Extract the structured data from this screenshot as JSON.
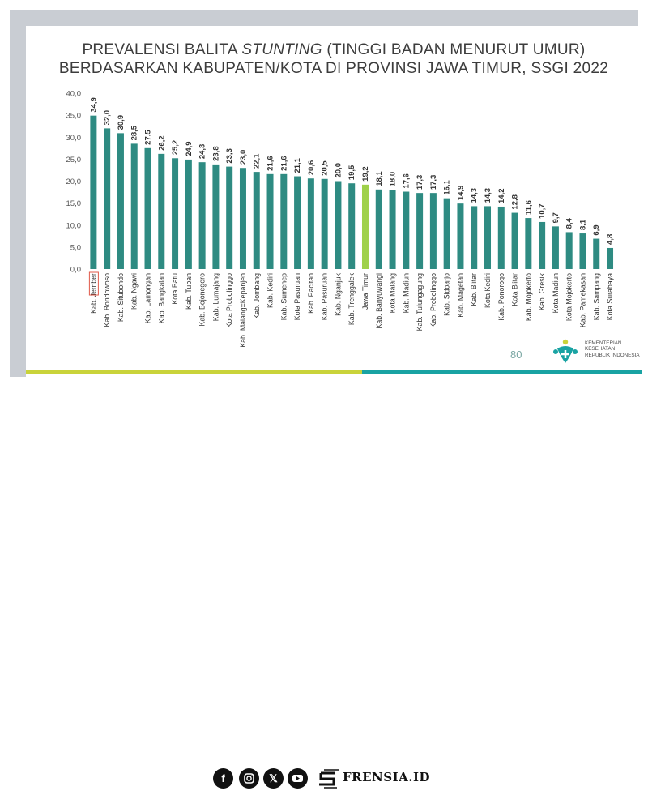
{
  "title": {
    "line1_pre": "PREVALENSI BALITA ",
    "line1_em": "STUNTING",
    "line1_post": " (TINGGI BADAN MENURUT UMUR)",
    "line2": "BERDASARKAN KABUPATEN/KOTA DI PROVINSI JAWA TIMUR, SSGI 2022"
  },
  "page_number": "80",
  "ministry_logo_text": "KEMENTERIAN KESEHATAN REPUBLIK INDONESIA",
  "colors": {
    "bar": "#2e8b82",
    "highlight_bar": "#9fd14a",
    "highlight_label": "#e05a4a",
    "footer_yellow": "#c9d33a",
    "footer_teal": "#19a3a3"
  },
  "footer": {
    "social_icons": [
      "facebook-icon",
      "instagram-icon",
      "x-icon",
      "youtube-icon"
    ],
    "brand": "FRENSIA.ID"
  },
  "chart_data": {
    "type": "bar",
    "categories": [
      "Kab. Jember",
      "Kab. Bondowoso",
      "Kab. Situbondo",
      "Kab. Ngawi",
      "Kab. Lamongan",
      "Kab. Bangkalan",
      "Kota Batu",
      "Kab. Tuban",
      "Kab. Bojonegoro",
      "Kab. Lumajang",
      "Kota Probolinggo",
      "Kab. Malang=Kepanjen",
      "Kab. Jombang",
      "Kab. Kediri",
      "Kab. Sumenep",
      "Kota Pasuruan",
      "Kab. Pacitan",
      "Kab. Pasuruan",
      "Kab. Nganjuk",
      "Kab. Trenggalek",
      "Jawa Timur",
      "Kab. Banyuwangi",
      "Kota Malang",
      "Kab. Madiun",
      "Kab. Tulungagung",
      "Kab. Probolinggo",
      "Kab. Sidoarjo",
      "Kab. Magetan",
      "Kab. Blitar",
      "Kota Kediri",
      "Kab. Ponorogo",
      "Kota Blitar",
      "Kab. Mojokerto",
      "Kab. Gresik",
      "Kota Madiun",
      "Kota Mojokerto",
      "Kab. Pamekasan",
      "Kab. Sampang",
      "Kota Surabaya"
    ],
    "values": [
      34.9,
      32.0,
      30.9,
      28.5,
      27.5,
      26.2,
      25.2,
      24.9,
      24.3,
      23.8,
      23.3,
      23.0,
      22.1,
      21.6,
      21.6,
      21.1,
      20.6,
      20.5,
      20.0,
      19.5,
      19.2,
      18.1,
      18.0,
      17.6,
      17.3,
      17.3,
      16.1,
      14.9,
      14.3,
      14.3,
      14.2,
      12.8,
      11.6,
      10.7,
      9.7,
      8.4,
      8.1,
      6.9,
      4.8
    ],
    "value_labels": [
      "34,9",
      "32,0",
      "30,9",
      "28,5",
      "27,5",
      "26,2",
      "25,2",
      "24,9",
      "24,3",
      "23,8",
      "23,3",
      "23,0",
      "22,1",
      "21,6",
      "21,6",
      "21,1",
      "20,6",
      "20,5",
      "20,0",
      "19,5",
      "19,2",
      "18,1",
      "18,0",
      "17,6",
      "17,3",
      "17,3",
      "16,1",
      "14,9",
      "14,3",
      "14,3",
      "14,2",
      "12,8",
      "11,6",
      "10,7",
      "9,7",
      "8,4",
      "8,1",
      "6,9",
      "4,8"
    ],
    "highlight_index": 20,
    "boxed_label_index": 0,
    "yticks": [
      "0,0",
      "5,0",
      "10,0",
      "15,0",
      "20,0",
      "25,0",
      "30,0",
      "35,0",
      "40,0"
    ],
    "ylim": [
      0,
      40
    ],
    "grid": false,
    "legend": "none"
  }
}
